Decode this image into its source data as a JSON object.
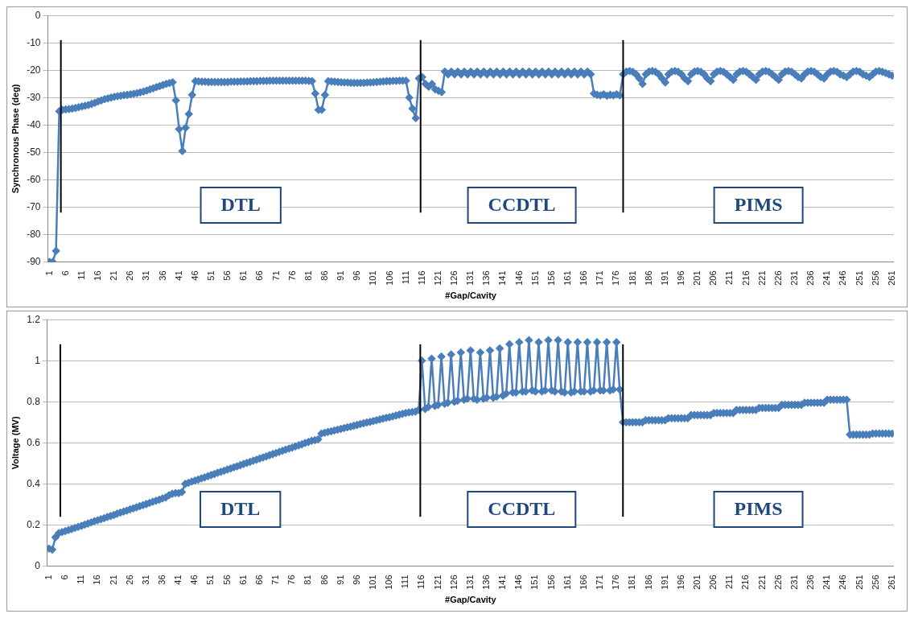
{
  "chart_data": [
    {
      "type": "line",
      "xlabel": "#Gap/Cavity",
      "ylabel": "Synchronous Phase (deg)",
      "color": "#4a7ebb",
      "marker": "diamond",
      "grid": "y",
      "legend": false,
      "xlim": [
        0.5,
        261.5
      ],
      "ylim": [
        -90,
        0
      ],
      "yticks": [
        -90,
        -80,
        -70,
        -60,
        -50,
        -40,
        -30,
        -20,
        -10,
        0
      ],
      "xticks": [
        1,
        6,
        11,
        16,
        21,
        26,
        31,
        36,
        41,
        46,
        51,
        56,
        61,
        66,
        71,
        76,
        81,
        86,
        91,
        96,
        101,
        106,
        111,
        116,
        121,
        126,
        131,
        136,
        141,
        146,
        151,
        156,
        161,
        166,
        171,
        176,
        181,
        186,
        191,
        196,
        201,
        206,
        211,
        216,
        221,
        226,
        231,
        236,
        241,
        246,
        251,
        256,
        261
      ],
      "ref_lines": [
        {
          "axis": "x",
          "value": 4.5,
          "color": "#000000"
        },
        {
          "axis": "x",
          "value": 115.5,
          "color": "#000000"
        },
        {
          "axis": "x",
          "value": 178,
          "color": "#000000"
        }
      ],
      "annotations": [
        "DTL",
        "CCDTL",
        "PIMS"
      ],
      "x": [
        1,
        2,
        3,
        4,
        5,
        6,
        7,
        8,
        9,
        10,
        11,
        12,
        13,
        14,
        15,
        16,
        17,
        18,
        19,
        20,
        21,
        22,
        23,
        24,
        25,
        26,
        27,
        28,
        29,
        30,
        31,
        32,
        33,
        34,
        35,
        36,
        37,
        38,
        39,
        40,
        41,
        42,
        43,
        44,
        45,
        46,
        47,
        48,
        49,
        50,
        51,
        52,
        53,
        54,
        55,
        56,
        57,
        58,
        59,
        60,
        61,
        62,
        63,
        64,
        65,
        66,
        67,
        68,
        69,
        70,
        71,
        72,
        73,
        74,
        75,
        76,
        77,
        78,
        79,
        80,
        81,
        82,
        83,
        84,
        85,
        86,
        87,
        88,
        89,
        90,
        91,
        92,
        93,
        94,
        95,
        96,
        97,
        98,
        99,
        100,
        101,
        102,
        103,
        104,
        105,
        106,
        107,
        108,
        109,
        110,
        111,
        112,
        113,
        114,
        115,
        116,
        117,
        118,
        119,
        120,
        121,
        122,
        123,
        124,
        125,
        126,
        127,
        128,
        129,
        130,
        131,
        132,
        133,
        134,
        135,
        136,
        137,
        138,
        139,
        140,
        141,
        142,
        143,
        144,
        145,
        146,
        147,
        148,
        149,
        150,
        151,
        152,
        153,
        154,
        155,
        156,
        157,
        158,
        159,
        160,
        161,
        162,
        163,
        164,
        165,
        166,
        167,
        168,
        169,
        170,
        171,
        172,
        173,
        174,
        175,
        176,
        177,
        178,
        179,
        180,
        181,
        182,
        183,
        184,
        185,
        186,
        187,
        188,
        189,
        190,
        191,
        192,
        193,
        194,
        195,
        196,
        197,
        198,
        199,
        200,
        201,
        202,
        203,
        204,
        205,
        206,
        207,
        208,
        209,
        210,
        211,
        212,
        213,
        214,
        215,
        216,
        217,
        218,
        219,
        220,
        221,
        222,
        223,
        224,
        225,
        226,
        227,
        228,
        229,
        230,
        231,
        232,
        233,
        234,
        235,
        236,
        237,
        238,
        239,
        240,
        241,
        242,
        243,
        244,
        245,
        246,
        247,
        248,
        249,
        250,
        251,
        252,
        253,
        254,
        255,
        256,
        257,
        258,
        259,
        260,
        261
      ],
      "values": [
        -90,
        -90,
        -86,
        -35,
        -34.5,
        -34.3,
        -34.2,
        -34,
        -33.8,
        -33.5,
        -33.2,
        -33,
        -32.7,
        -32.3,
        -31.9,
        -31.4,
        -31,
        -30.6,
        -30.3,
        -30,
        -29.7,
        -29.5,
        -29.3,
        -29.1,
        -29,
        -28.8,
        -28.6,
        -28.4,
        -28.1,
        -27.8,
        -27.4,
        -27,
        -26.6,
        -26.2,
        -25.8,
        -25.4,
        -25,
        -24.7,
        -24.4,
        -31,
        -41.5,
        -49.5,
        -41,
        -36,
        -29,
        -24,
        -24.1,
        -24.2,
        -24.2,
        -24.3,
        -24.3,
        -24.3,
        -24.3,
        -24.3,
        -24.3,
        -24.3,
        -24.2,
        -24.2,
        -24.2,
        -24.1,
        -24.1,
        -24.1,
        -24,
        -24,
        -24,
        -23.9,
        -23.9,
        -23.9,
        -23.8,
        -23.8,
        -23.8,
        -23.8,
        -23.8,
        -23.8,
        -23.8,
        -23.8,
        -23.8,
        -23.8,
        -23.8,
        -23.8,
        -23.9,
        -24,
        -28.5,
        -34.5,
        -34.5,
        -29,
        -24,
        -24.1,
        -24.2,
        -24.3,
        -24.4,
        -24.5,
        -24.5,
        -24.6,
        -24.6,
        -24.6,
        -24.6,
        -24.6,
        -24.5,
        -24.5,
        -24.4,
        -24.3,
        -24.2,
        -24.1,
        -24,
        -24,
        -23.9,
        -23.9,
        -23.8,
        -23.8,
        -23.8,
        -30,
        -34,
        -37.5,
        -23,
        -22.5,
        -25,
        -26,
        -25,
        -27,
        -27.5,
        -28,
        -20.5,
        -21.5,
        -20.5,
        -21.5,
        -20.5,
        -21.5,
        -20.5,
        -21.5,
        -20.5,
        -21.5,
        -20.5,
        -21.5,
        -20.5,
        -21.5,
        -20.5,
        -21.5,
        -20.5,
        -21.5,
        -20.5,
        -21.5,
        -20.5,
        -21.5,
        -20.5,
        -21.5,
        -20.5,
        -21.5,
        -20.5,
        -21.5,
        -20.5,
        -21.5,
        -20.5,
        -21.5,
        -20.5,
        -21.5,
        -20.5,
        -21.5,
        -20.5,
        -21.5,
        -20.5,
        -21.5,
        -20.5,
        -21.5,
        -20.5,
        -21.5,
        -20.5,
        -21.5,
        -28.5,
        -29,
        -29.2,
        -28.8,
        -29.3,
        -29,
        -29.2,
        -28.8,
        -29.2,
        -21.5,
        -20.5,
        -20.3,
        -20.6,
        -21.5,
        -23,
        -25,
        -21.5,
        -20.5,
        -20.3,
        -20.6,
        -21.5,
        -23,
        -24.5,
        -21.5,
        -20.5,
        -20.3,
        -20.6,
        -21.5,
        -23,
        -24,
        -21.5,
        -20.5,
        -20.3,
        -20.6,
        -21.5,
        -23,
        -24,
        -21.5,
        -20.5,
        -20.3,
        -20.6,
        -21.5,
        -22.5,
        -23.5,
        -21.5,
        -20.5,
        -20.3,
        -20.6,
        -21.5,
        -22.5,
        -23.5,
        -21.5,
        -20.5,
        -20.3,
        -20.6,
        -21.5,
        -22.5,
        -23.5,
        -21.5,
        -20.5,
        -20.3,
        -20.6,
        -21.5,
        -22.5,
        -23,
        -21.5,
        -20.5,
        -20.3,
        -20.6,
        -21.5,
        -22.5,
        -23,
        -21.5,
        -20.5,
        -20.3,
        -20.6,
        -21.5,
        -22,
        -22.5,
        -21.5,
        -20.5,
        -20.3,
        -20.6,
        -21.5,
        -22,
        -22.5,
        -21.5,
        -20.5,
        -20.3,
        -20.6,
        -21,
        -21.5,
        -22
      ]
    },
    {
      "type": "line",
      "xlabel": "#Gap/Cavity",
      "ylabel": "Voltage (MV)",
      "color": "#4a7ebb",
      "marker": "diamond",
      "grid": "y",
      "legend": false,
      "xlim": [
        0.5,
        261.5
      ],
      "ylim": [
        0,
        1.2
      ],
      "yticks": [
        0,
        0.2,
        0.4,
        0.6,
        0.8,
        1,
        1.2
      ],
      "xticks": [
        1,
        6,
        11,
        16,
        21,
        26,
        31,
        36,
        41,
        46,
        51,
        56,
        61,
        66,
        71,
        76,
        81,
        86,
        91,
        96,
        101,
        106,
        111,
        116,
        121,
        126,
        131,
        136,
        141,
        146,
        151,
        156,
        161,
        166,
        171,
        176,
        181,
        186,
        191,
        196,
        201,
        206,
        211,
        216,
        221,
        226,
        231,
        236,
        241,
        246,
        251,
        256,
        261
      ],
      "ref_lines": [
        {
          "axis": "x",
          "value": 4.5,
          "color": "#000000"
        },
        {
          "axis": "x",
          "value": 115.5,
          "color": "#000000"
        },
        {
          "axis": "x",
          "value": 178,
          "color": "#000000"
        }
      ],
      "annotations": [
        "DTL",
        "CCDTL",
        "PIMS"
      ],
      "x": [
        1,
        2,
        3,
        4,
        5,
        6,
        7,
        8,
        9,
        10,
        11,
        12,
        13,
        14,
        15,
        16,
        17,
        18,
        19,
        20,
        21,
        22,
        23,
        24,
        25,
        26,
        27,
        28,
        29,
        30,
        31,
        32,
        33,
        34,
        35,
        36,
        37,
        38,
        39,
        40,
        41,
        42,
        43,
        44,
        45,
        46,
        47,
        48,
        49,
        50,
        51,
        52,
        53,
        54,
        55,
        56,
        57,
        58,
        59,
        60,
        61,
        62,
        63,
        64,
        65,
        66,
        67,
        68,
        69,
        70,
        71,
        72,
        73,
        74,
        75,
        76,
        77,
        78,
        79,
        80,
        81,
        82,
        83,
        84,
        85,
        86,
        87,
        88,
        89,
        90,
        91,
        92,
        93,
        94,
        95,
        96,
        97,
        98,
        99,
        100,
        101,
        102,
        103,
        104,
        105,
        106,
        107,
        108,
        109,
        110,
        111,
        112,
        113,
        114,
        115,
        116,
        117,
        118,
        119,
        120,
        121,
        122,
        123,
        124,
        125,
        126,
        127,
        128,
        129,
        130,
        131,
        132,
        133,
        134,
        135,
        136,
        137,
        138,
        139,
        140,
        141,
        142,
        143,
        144,
        145,
        146,
        147,
        148,
        149,
        150,
        151,
        152,
        153,
        154,
        155,
        156,
        157,
        158,
        159,
        160,
        161,
        162,
        163,
        164,
        165,
        166,
        167,
        168,
        169,
        170,
        171,
        172,
        173,
        174,
        175,
        176,
        177,
        178,
        179,
        180,
        181,
        182,
        183,
        184,
        185,
        186,
        187,
        188,
        189,
        190,
        191,
        192,
        193,
        194,
        195,
        196,
        197,
        198,
        199,
        200,
        201,
        202,
        203,
        204,
        205,
        206,
        207,
        208,
        209,
        210,
        211,
        212,
        213,
        214,
        215,
        216,
        217,
        218,
        219,
        220,
        221,
        222,
        223,
        224,
        225,
        226,
        227,
        228,
        229,
        230,
        231,
        232,
        233,
        234,
        235,
        236,
        237,
        238,
        239,
        240,
        241,
        242,
        243,
        244,
        245,
        246,
        247,
        248,
        249,
        250,
        251,
        252,
        253,
        254,
        255,
        256,
        257,
        258,
        259,
        260,
        261
      ],
      "values": [
        0.085,
        0.08,
        0.14,
        0.16,
        0.165,
        0.17,
        0.175,
        0.18,
        0.186,
        0.191,
        0.196,
        0.202,
        0.207,
        0.212,
        0.218,
        0.223,
        0.228,
        0.233,
        0.239,
        0.244,
        0.249,
        0.255,
        0.26,
        0.265,
        0.27,
        0.276,
        0.281,
        0.286,
        0.292,
        0.297,
        0.302,
        0.307,
        0.313,
        0.318,
        0.323,
        0.329,
        0.334,
        0.345,
        0.352,
        0.355,
        0.355,
        0.36,
        0.4,
        0.405,
        0.411,
        0.416,
        0.421,
        0.427,
        0.432,
        0.438,
        0.443,
        0.448,
        0.454,
        0.459,
        0.464,
        0.47,
        0.475,
        0.481,
        0.486,
        0.491,
        0.497,
        0.502,
        0.507,
        0.513,
        0.518,
        0.524,
        0.529,
        0.534,
        0.54,
        0.545,
        0.55,
        0.556,
        0.561,
        0.567,
        0.572,
        0.577,
        0.583,
        0.588,
        0.593,
        0.599,
        0.604,
        0.61,
        0.613,
        0.617,
        0.645,
        0.649,
        0.653,
        0.656,
        0.66,
        0.664,
        0.668,
        0.672,
        0.676,
        0.679,
        0.683,
        0.687,
        0.691,
        0.695,
        0.699,
        0.702,
        0.706,
        0.71,
        0.714,
        0.718,
        0.722,
        0.725,
        0.729,
        0.733,
        0.737,
        0.741,
        0.745,
        0.748,
        0.75,
        0.752,
        0.76,
        1,
        0.765,
        0.775,
        1.01,
        0.78,
        0.785,
        1.02,
        0.79,
        0.795,
        1.03,
        0.8,
        0.805,
        1.04,
        0.81,
        0.815,
        1.05,
        0.815,
        0.81,
        1.04,
        0.815,
        0.82,
        1.05,
        0.82,
        0.825,
        1.06,
        0.83,
        0.84,
        1.08,
        0.845,
        0.845,
        1.09,
        0.85,
        0.85,
        1.1,
        0.855,
        0.85,
        1.09,
        0.85,
        0.855,
        1.1,
        0.855,
        0.85,
        1.1,
        0.85,
        0.845,
        1.09,
        0.845,
        0.85,
        1.09,
        0.85,
        0.85,
        1.09,
        0.85,
        0.855,
        1.09,
        0.855,
        0.855,
        1.09,
        0.855,
        0.86,
        1.09,
        0.86,
        0.7,
        0.7,
        0.7,
        0.7,
        0.7,
        0.7,
        0.7,
        0.71,
        0.71,
        0.71,
        0.71,
        0.71,
        0.71,
        0.71,
        0.72,
        0.72,
        0.72,
        0.72,
        0.72,
        0.72,
        0.72,
        0.735,
        0.735,
        0.735,
        0.735,
        0.735,
        0.735,
        0.735,
        0.745,
        0.745,
        0.745,
        0.745,
        0.745,
        0.745,
        0.745,
        0.76,
        0.76,
        0.76,
        0.76,
        0.76,
        0.76,
        0.76,
        0.77,
        0.77,
        0.77,
        0.77,
        0.77,
        0.77,
        0.77,
        0.785,
        0.785,
        0.785,
        0.785,
        0.785,
        0.785,
        0.785,
        0.795,
        0.795,
        0.795,
        0.795,
        0.795,
        0.795,
        0.795,
        0.81,
        0.81,
        0.81,
        0.81,
        0.81,
        0.81,
        0.81,
        0.64,
        0.64,
        0.64,
        0.64,
        0.64,
        0.64,
        0.64,
        0.645,
        0.645,
        0.645,
        0.645,
        0.645,
        0.645,
        0.645
      ]
    }
  ]
}
